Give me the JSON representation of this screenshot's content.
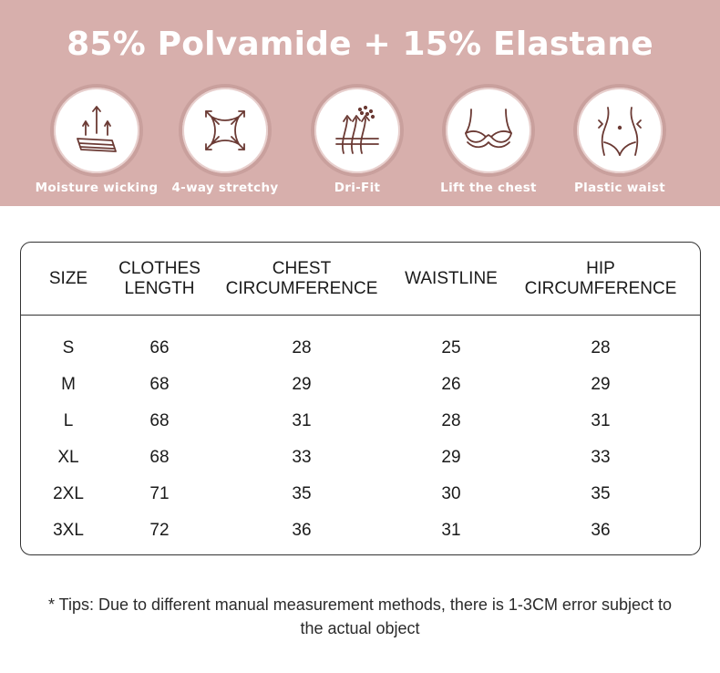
{
  "banner": {
    "title": "85% Polvamide + 15% Elastane",
    "features": [
      {
        "label": "Moisture wicking",
        "icon": "moisture-wicking-icon"
      },
      {
        "label": "4-way stretchy",
        "icon": "four-way-stretch-icon"
      },
      {
        "label": "Dri-Fit",
        "icon": "dri-fit-icon"
      },
      {
        "label": "Lift the chest",
        "icon": "bra-lift-icon"
      },
      {
        "label": "Plastic waist",
        "icon": "waist-shaping-icon"
      }
    ],
    "colors": {
      "background": "#d7afac",
      "icon_stroke": "#6b3a34"
    }
  },
  "size_table": {
    "headers": [
      "SIZE",
      "CLOTHES\nLENGTH",
      "CHEST\nCIRCUMFERENCE",
      "WAISTLINE",
      "HIP\nCIRCUMFERENCE"
    ],
    "rows": [
      [
        "S",
        "66",
        "28",
        "25",
        "28"
      ],
      [
        "M",
        "68",
        "29",
        "26",
        "29"
      ],
      [
        "L",
        "68",
        "31",
        "28",
        "31"
      ],
      [
        "XL",
        "68",
        "33",
        "29",
        "33"
      ],
      [
        "2XL",
        "71",
        "35",
        "30",
        "35"
      ],
      [
        "3XL",
        "72",
        "36",
        "31",
        "36"
      ]
    ]
  },
  "tips": "* Tips: Due to different manual measurement methods, there is 1-3CM error subject to the actual object"
}
